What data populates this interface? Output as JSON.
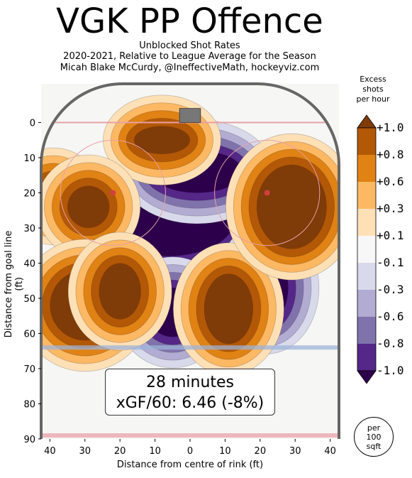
{
  "header": {
    "title": "VGK PP Offence",
    "subtitle_lines": [
      "Unblocked Shot Rates",
      "2020-2021, Relative to League Average for the Season",
      "Micah Blake McCurdy, @IneffectiveMath, hockeyviz.com"
    ]
  },
  "summary": {
    "minutes": "28 minutes",
    "xgf": "xGF/60: 6.46 (-8%)"
  },
  "colorbar": {
    "title_lines": [
      "Excess",
      "shots",
      "per hour"
    ],
    "labels": [
      "+1.0",
      "+0.8",
      "+0.6",
      "+0.3",
      "+0.1",
      "-0.1",
      "-0.3",
      "-0.6",
      "-0.8",
      "-1.0"
    ],
    "colors": [
      "#7f3b08",
      "#b35806",
      "#e08214",
      "#fdb863",
      "#fee0b6",
      "#f7f7f7",
      "#d8daeb",
      "#b2abd2",
      "#8073ac",
      "#542788",
      "#2d004b"
    ],
    "per_area_lines": [
      "per",
      "100",
      "sqft"
    ]
  },
  "chart_data": {
    "type": "heatmap",
    "title": "VGK PP Offence",
    "xlabel": "Distance from centre of rink (ft)",
    "ylabel": "Distance from goal line (ft)",
    "xlim": [
      -42.5,
      42.5
    ],
    "ylim": [
      90,
      -11
    ],
    "x_ticks": [
      40,
      30,
      20,
      10,
      0,
      10,
      20,
      30,
      40
    ],
    "x_tick_values": [
      -40,
      -30,
      -20,
      -10,
      0,
      10,
      20,
      30,
      40
    ],
    "y_ticks": [
      0,
      10,
      20,
      30,
      40,
      50,
      60,
      70,
      80,
      90
    ],
    "value_range": [
      -1.0,
      1.0
    ],
    "colors": {
      "positive": "#7f3b08",
      "negative": "#2d004b",
      "neutral": "#f7f7f7"
    },
    "regions": [
      {
        "sign": "negative",
        "x": -6,
        "y": 27,
        "rx": 19,
        "ry": 11
      },
      {
        "sign": "negative",
        "x": 2,
        "y": 14,
        "rx": 13,
        "ry": 6
      },
      {
        "sign": "negative",
        "x": -5,
        "y": 54,
        "rx": 7,
        "ry": 7
      },
      {
        "sign": "negative",
        "x": 22,
        "y": 47,
        "rx": 6,
        "ry": 10
      },
      {
        "sign": "positive",
        "x": -8,
        "y": 5,
        "rx": 8,
        "ry": 4
      },
      {
        "sign": "positive",
        "x": -39,
        "y": 21,
        "rx": 5,
        "ry": 5
      },
      {
        "sign": "positive",
        "x": -29,
        "y": 24,
        "rx": 6,
        "ry": 6
      },
      {
        "sign": "positive",
        "x": -30,
        "y": 52,
        "rx": 10,
        "ry": 10
      },
      {
        "sign": "positive",
        "x": -20,
        "y": 48,
        "rx": 6,
        "ry": 8
      },
      {
        "sign": "positive",
        "x": 11,
        "y": 53,
        "rx": 7,
        "ry": 10
      },
      {
        "sign": "positive",
        "x": 29,
        "y": 24,
        "rx": 10,
        "ry": 12
      }
    ]
  }
}
